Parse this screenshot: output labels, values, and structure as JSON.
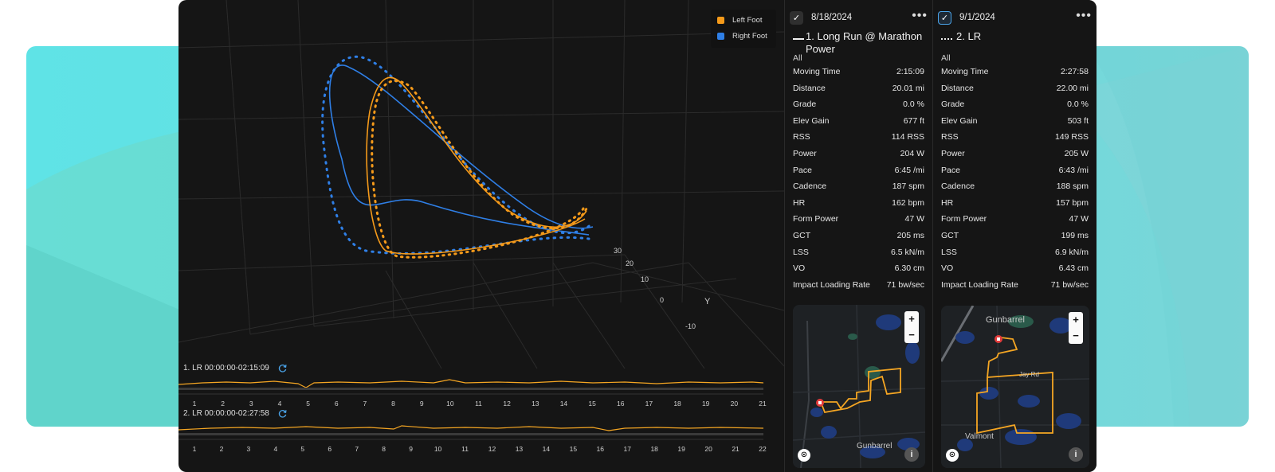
{
  "colors": {
    "left_foot": "#f59a1a",
    "right_foot": "#2f7fe6",
    "background_panel": "#151515",
    "accent_teal": "#5fe3e6",
    "route_line": "#f5a623"
  },
  "plot3d": {
    "legend": [
      {
        "label": "Left Foot",
        "color": "#f59a1a"
      },
      {
        "label": "Right Foot",
        "color": "#2f7fe6"
      }
    ],
    "axis_ticks": [
      "30",
      "20",
      "10",
      "0",
      "-10"
    ],
    "axis_label_y": "Y"
  },
  "timelines": [
    {
      "title": "1. LR 00:00:00-02:15:09",
      "sync_icon": "refresh-icon",
      "ticks": [
        "1",
        "2",
        "3",
        "4",
        "5",
        "6",
        "7",
        "8",
        "9",
        "10",
        "11",
        "12",
        "13",
        "14",
        "15",
        "16",
        "17",
        "18",
        "19",
        "20",
        "21"
      ]
    },
    {
      "title": "2. LR 00:00:00-02:27:58",
      "sync_icon": "refresh-icon",
      "ticks": [
        "1",
        "2",
        "3",
        "4",
        "5",
        "6",
        "7",
        "8",
        "9",
        "10",
        "11",
        "12",
        "13",
        "14",
        "15",
        "16",
        "17",
        "18",
        "19",
        "20",
        "21",
        "22"
      ]
    }
  ],
  "activities": [
    {
      "checked": true,
      "check_glyph": "✓",
      "date": "8/18/2024",
      "more": "•••",
      "name_prefix": "1.",
      "name": "Long Run @ Marathon Power",
      "filter": "All",
      "stats": [
        {
          "label": "Moving Time",
          "value": "2:15:09"
        },
        {
          "label": "Distance",
          "value": "20.01 mi"
        },
        {
          "label": "Grade",
          "value": "0.0 %"
        },
        {
          "label": "Elev Gain",
          "value": "677 ft"
        },
        {
          "label": "RSS",
          "value": "114 RSS"
        },
        {
          "label": "Power",
          "value": "204 W"
        },
        {
          "label": "Pace",
          "value": "6:45 /mi"
        },
        {
          "label": "Cadence",
          "value": "187 spm"
        },
        {
          "label": "HR",
          "value": "162 bpm"
        },
        {
          "label": "Form Power",
          "value": "47 W"
        },
        {
          "label": "GCT",
          "value": "205 ms"
        },
        {
          "label": "LSS",
          "value": "6.5 kN/m"
        },
        {
          "label": "VO",
          "value": "6.30 cm"
        },
        {
          "label": "Impact Loading Rate",
          "value": "71 bw/sec"
        }
      ],
      "map": {
        "zoom_in": "+",
        "zoom_out": "−",
        "info": "i",
        "logo": "⊙",
        "place": "Gunbarrel"
      }
    },
    {
      "checked": true,
      "check_glyph": "✓",
      "date": "9/1/2024",
      "more": "•••",
      "name_prefix": "2.",
      "name": "LR",
      "filter": "All",
      "stats": [
        {
          "label": "Moving Time",
          "value": "2:27:58"
        },
        {
          "label": "Distance",
          "value": "22.00 mi"
        },
        {
          "label": "Grade",
          "value": "0.0 %"
        },
        {
          "label": "Elev Gain",
          "value": "503 ft"
        },
        {
          "label": "RSS",
          "value": "149 RSS"
        },
        {
          "label": "Power",
          "value": "205 W"
        },
        {
          "label": "Pace",
          "value": "6:43 /mi"
        },
        {
          "label": "Cadence",
          "value": "188 spm"
        },
        {
          "label": "HR",
          "value": "157 bpm"
        },
        {
          "label": "Form Power",
          "value": "47 W"
        },
        {
          "label": "GCT",
          "value": "199 ms"
        },
        {
          "label": "LSS",
          "value": "6.9 kN/m"
        },
        {
          "label": "VO",
          "value": "6.43 cm"
        },
        {
          "label": "Impact Loading Rate",
          "value": "71 bw/sec"
        }
      ],
      "map": {
        "zoom_in": "+",
        "zoom_out": "−",
        "info": "i",
        "logo": "⊙",
        "place_top": "Gunbarrel",
        "place_mid": "Jay Rd",
        "place_bottom": "Valmont"
      }
    }
  ]
}
